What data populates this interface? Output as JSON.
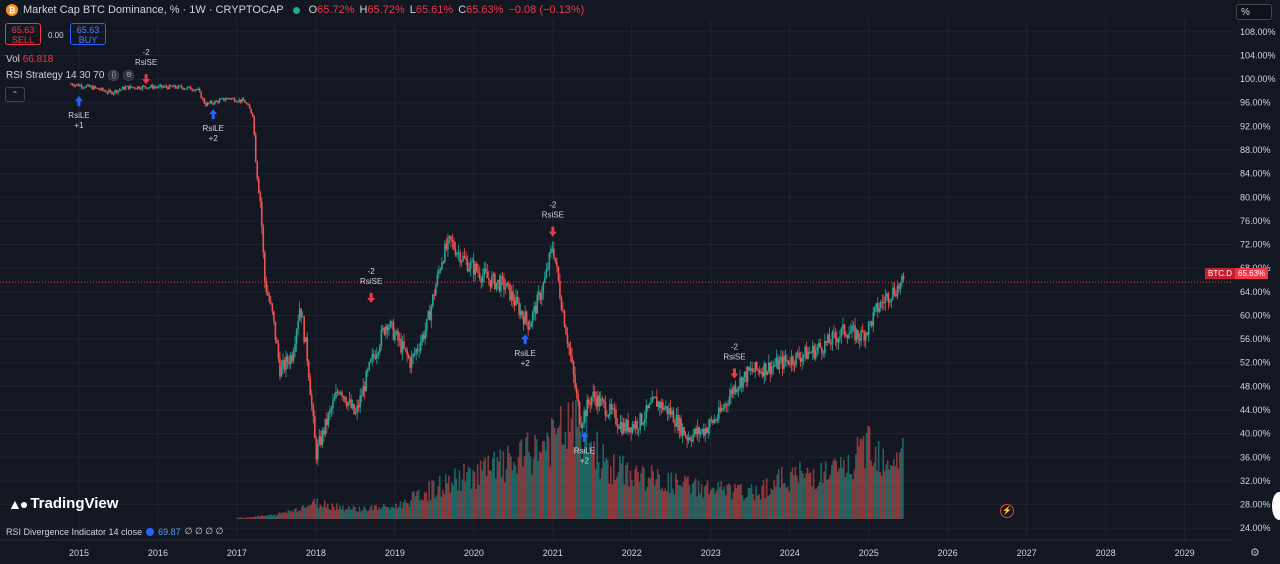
{
  "header": {
    "title": "Market Cap BTC Dominance, % · 1W · CRYPTOCAP",
    "icon_letter": "₿",
    "ohlc": [
      {
        "label": "O",
        "value": "65.72%"
      },
      {
        "label": "H",
        "value": "65.72%"
      },
      {
        "label": "L",
        "value": "65.61%"
      },
      {
        "label": "C",
        "value": "65.63%"
      }
    ],
    "change": "−0.08 (−0.13%)"
  },
  "trade": {
    "sell_price": "65.63",
    "sell_label": "SELL",
    "spread": "0.00",
    "buy_price": "65.63",
    "buy_label": "BUY"
  },
  "volume": {
    "label": "Vol",
    "value": "66.818"
  },
  "strategy": {
    "label": "RSI Strategy 14 30 70"
  },
  "scale_mode": "%",
  "brand": "TradingView",
  "bottom_indicator": {
    "label": "RSI Divergence Indicator 14 close",
    "value": "69.87",
    "extra": "∅ ∅ ∅ ∅"
  },
  "price_tag": {
    "symbol": "BTC.D",
    "value": "65.63%"
  },
  "colors": {
    "bg": "#131722",
    "up": "#26a69a",
    "down": "#ef5350",
    "arrow_up": "#2962ff",
    "arrow_down": "#f23645",
    "grid": "#1f2330",
    "text": "#d1d4dc"
  },
  "chart_data": {
    "type": "candlestick",
    "title": "Market Cap BTC Dominance, % · 1W · CRYPTOCAP",
    "ylim": [
      22,
      110
    ],
    "xlim": [
      2014.0,
      2029.6
    ],
    "y_ticks": [
      "108.00%",
      "104.00%",
      "100.00%",
      "96.00%",
      "92.00%",
      "88.00%",
      "84.00%",
      "80.00%",
      "76.00%",
      "72.00%",
      "68.00%",
      "64.00%",
      "60.00%",
      "56.00%",
      "52.00%",
      "48.00%",
      "44.00%",
      "40.00%",
      "36.00%",
      "32.00%",
      "28.00%",
      "24.00%"
    ],
    "x_ticks": [
      "2015",
      "2016",
      "2017",
      "2018",
      "2019",
      "2020",
      "2021",
      "2022",
      "2023",
      "2024",
      "2025",
      "2026",
      "2027",
      "2028",
      "2029"
    ],
    "last_value": 65.63,
    "price_path": [
      [
        2014.9,
        99.2
      ],
      [
        2015.2,
        98.5
      ],
      [
        2015.4,
        97.7
      ],
      [
        2015.6,
        98.6
      ],
      [
        2015.9,
        98.7
      ],
      [
        2016.3,
        98.6
      ],
      [
        2016.5,
        98.3
      ],
      [
        2016.6,
        95.7
      ],
      [
        2016.9,
        96.8
      ],
      [
        2017.1,
        96.2
      ],
      [
        2017.2,
        94.0
      ],
      [
        2017.25,
        85.0
      ],
      [
        2017.3,
        79.0
      ],
      [
        2017.35,
        66.0
      ],
      [
        2017.45,
        60.0
      ],
      [
        2017.55,
        50.5
      ],
      [
        2017.7,
        53.5
      ],
      [
        2017.8,
        62.0
      ],
      [
        2017.9,
        52.0
      ],
      [
        2018.0,
        36.5
      ],
      [
        2018.1,
        40.5
      ],
      [
        2018.3,
        48.0
      ],
      [
        2018.5,
        43.0
      ],
      [
        2018.7,
        52.0
      ],
      [
        2018.9,
        59.0
      ],
      [
        2019.2,
        52.0
      ],
      [
        2019.4,
        58.0
      ],
      [
        2019.6,
        70.0
      ],
      [
        2019.7,
        72.5
      ],
      [
        2019.9,
        69.0
      ],
      [
        2020.0,
        68.0
      ],
      [
        2020.2,
        66.0
      ],
      [
        2020.4,
        65.0
      ],
      [
        2020.6,
        60.5
      ],
      [
        2020.7,
        58.5
      ],
      [
        2020.8,
        62.0
      ],
      [
        2020.9,
        66.0
      ],
      [
        2021.0,
        72.0
      ],
      [
        2021.1,
        63.0
      ],
      [
        2021.2,
        55.0
      ],
      [
        2021.35,
        42.0
      ],
      [
        2021.5,
        46.5
      ],
      [
        2021.7,
        44.0
      ],
      [
        2021.9,
        41.0
      ],
      [
        2022.1,
        42.0
      ],
      [
        2022.3,
        45.5
      ],
      [
        2022.5,
        43.5
      ],
      [
        2022.7,
        39.5
      ],
      [
        2022.9,
        40.5
      ],
      [
        2023.1,
        43.0
      ],
      [
        2023.3,
        48.0
      ],
      [
        2023.5,
        50.5
      ],
      [
        2023.8,
        51.5
      ],
      [
        2024.0,
        52.5
      ],
      [
        2024.3,
        54.0
      ],
      [
        2024.5,
        55.5
      ],
      [
        2024.7,
        57.5
      ],
      [
        2024.9,
        56.5
      ],
      [
        2025.0,
        58.0
      ],
      [
        2025.1,
        61.0
      ],
      [
        2025.25,
        63.5
      ],
      [
        2025.45,
        65.63
      ]
    ],
    "volume_path": [
      [
        2017.0,
        0.01
      ],
      [
        2017.5,
        0.04
      ],
      [
        2018.0,
        0.16
      ],
      [
        2018.5,
        0.1
      ],
      [
        2019.0,
        0.12
      ],
      [
        2019.5,
        0.3
      ],
      [
        2020.0,
        0.45
      ],
      [
        2020.5,
        0.55
      ],
      [
        2021.0,
        0.78
      ],
      [
        2021.3,
        0.95
      ],
      [
        2021.7,
        0.5
      ],
      [
        2022.0,
        0.45
      ],
      [
        2022.5,
        0.35
      ],
      [
        2023.0,
        0.3
      ],
      [
        2023.5,
        0.25
      ],
      [
        2024.0,
        0.42
      ],
      [
        2024.5,
        0.45
      ],
      [
        2024.8,
        0.52
      ],
      [
        2025.0,
        0.8
      ],
      [
        2025.2,
        0.6
      ],
      [
        2025.45,
        0.65
      ]
    ],
    "annotations": [
      {
        "label": "RsiLE",
        "qty": "+1",
        "x": 2015.0,
        "y": 97.8,
        "direction": "up"
      },
      {
        "label": "RsiSE",
        "qty": "-2",
        "x": 2015.85,
        "y": 98.8,
        "direction": "down"
      },
      {
        "label": "RsiLE",
        "qty": "+2",
        "x": 2016.7,
        "y": 95.6,
        "direction": "up"
      },
      {
        "label": "RsiSE",
        "qty": "-2",
        "x": 2018.7,
        "y": 61.8,
        "direction": "down"
      },
      {
        "label": "RsiSE",
        "qty": "-2",
        "x": 2021.0,
        "y": 73.0,
        "direction": "down"
      },
      {
        "label": "RsiLE",
        "qty": "+2",
        "x": 2020.65,
        "y": 57.5,
        "direction": "up"
      },
      {
        "label": "RsiLE",
        "qty": "+2",
        "x": 2021.4,
        "y": 41.0,
        "direction": "up"
      },
      {
        "label": "RsiSE",
        "qty": "-2",
        "x": 2023.3,
        "y": 49.0,
        "direction": "down"
      }
    ]
  }
}
